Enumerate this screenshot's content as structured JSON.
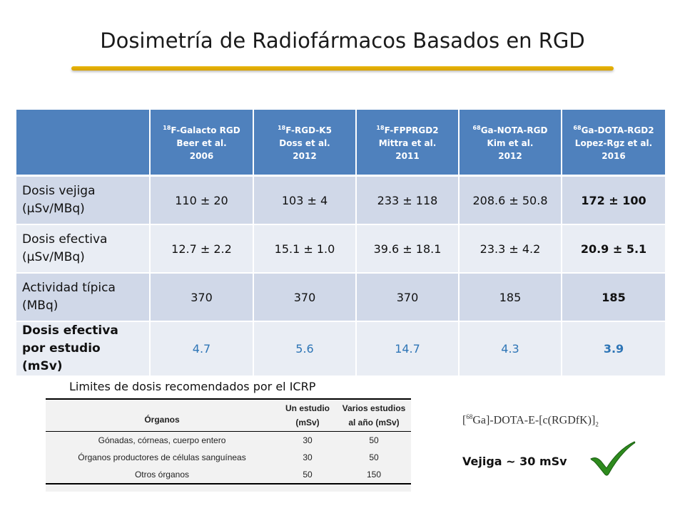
{
  "title": "Dosimetría de Radiofármacos Basados en RGD",
  "colors": {
    "header_blue": "#4f81bd",
    "row_dark": "#d0d8e8",
    "row_light": "#e9edf4",
    "underline_gold": "#e0ab00",
    "value_blue": "#2e75b6",
    "check_green": "#2e8b1e"
  },
  "table": {
    "columns": [
      {
        "iso": "18",
        "name": "F-Galacto RGD",
        "author": "Beer et al.",
        "year": "2006"
      },
      {
        "iso": "18",
        "name": "F-RGD-K5",
        "author": "Doss et al.",
        "year": "2012"
      },
      {
        "iso": "18",
        "name": "F-FPPRGD2",
        "author": "Mittra et al.",
        "year": "2011"
      },
      {
        "iso": "68",
        "name": "Ga-NOTA-RGD",
        "author": "Kim et al.",
        "year": "2012"
      },
      {
        "iso": "68",
        "name": "Ga-DOTA-RGD2",
        "author": "Lopez-Rgz et al.",
        "year": "2016"
      }
    ],
    "rows": [
      {
        "label": "Dosis vejiga (µSv/MBq)",
        "values": [
          "110 ± 20",
          "103 ± 4",
          "233 ± 118",
          "208.6 ± 50.8",
          "172 ± 100"
        ]
      },
      {
        "label": "Dosis efectiva (µSv/MBq)",
        "values": [
          "12.7 ± 2.2",
          "15.1 ± 1.0",
          "39.6 ± 18.1",
          "23.3 ± 4.2",
          "20.9 ± 5.1"
        ]
      },
      {
        "label": "Actividad típica (MBq)",
        "values": [
          "370",
          "370",
          "370",
          "185",
          "185"
        ]
      },
      {
        "label": "Dosis efectiva por estudio (mSv)",
        "values": [
          "4.7",
          "5.6",
          "14.7",
          "4.3",
          "3.9"
        ]
      }
    ]
  },
  "icrp": {
    "caption": "Limites de dosis recomendados por el ICRP",
    "headers": {
      "organ": "Órganos",
      "one_line1": "Un estudio",
      "one_line2": "(mSv)",
      "yr_line1": "Varios estudios",
      "yr_line2": "al año (mSv)"
    },
    "rows": [
      {
        "organ": "Gónadas, córneas, cuerpo entero",
        "one": "30",
        "yr": "50"
      },
      {
        "organ": "Órganos productores de células sanguíneas",
        "one": "30",
        "yr": "50"
      },
      {
        "organ": "Otros órganos",
        "one": "50",
        "yr": "150"
      }
    ]
  },
  "formula": {
    "open": "[",
    "iso": "68",
    "body": "Ga]-DOTA-E-[c(RGDfK)]",
    "sub": "2"
  },
  "vejiga_note": "Vejiga ~ 30 mSv",
  "check_icon": "checkmark-icon"
}
